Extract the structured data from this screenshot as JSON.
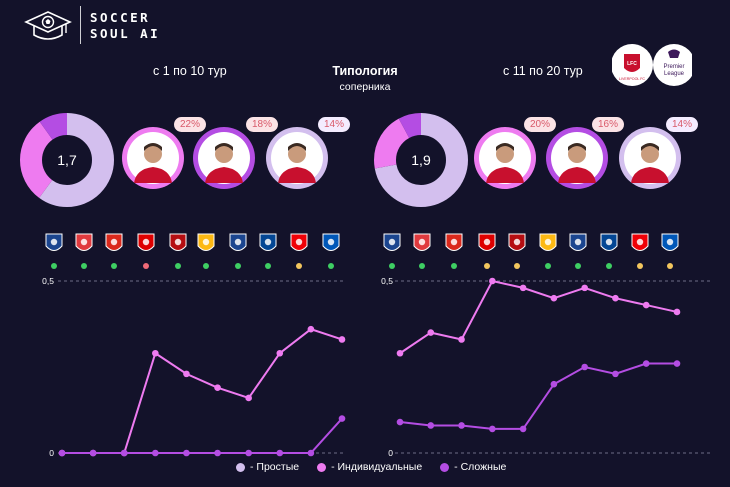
{
  "brand": {
    "line1": "SOCCER",
    "line2": "SOUL AI"
  },
  "header": {
    "left_title": "с 1 по 10 тур",
    "center_title": "Типология",
    "center_subtitle": "соперника",
    "right_title": "с 11 по 20 тур"
  },
  "badges": [
    "LIVERPOOL FC",
    "Premier League"
  ],
  "colors": {
    "simple": "#d3bfee",
    "individual": "#ee7bf0",
    "complex": "#b44de3",
    "green": "#3ecf63",
    "red": "#f06a78",
    "yellow": "#f3c65e",
    "background": "#13122a"
  },
  "panels": [
    {
      "donut_value": "1,7",
      "donut_shares": {
        "simple": 0.6,
        "individual": 0.3,
        "complex": 0.1
      },
      "players": [
        {
          "pct": "22%",
          "ring": "individual",
          "icon": "player-photo-icon"
        },
        {
          "pct": "18%",
          "ring": "complex",
          "icon": "player-photo-icon"
        },
        {
          "pct": "14%",
          "ring": "simple",
          "icon": "player-photo-icon"
        }
      ],
      "opponents": [
        {
          "icon": "ipswich-crest-icon",
          "status": "green"
        },
        {
          "icon": "brentford-crest-icon",
          "status": "green"
        },
        {
          "icon": "man-united-crest-icon",
          "status": "green"
        },
        {
          "icon": "nottingham-crest-icon",
          "status": "red"
        },
        {
          "icon": "bournemouth-crest-icon",
          "status": "green"
        },
        {
          "icon": "wolves-crest-icon",
          "status": "green"
        },
        {
          "icon": "crystal-palace-crest-icon",
          "status": "green"
        },
        {
          "icon": "chelsea-crest-icon",
          "status": "green"
        },
        {
          "icon": "arsenal-crest-icon",
          "status": "yellow"
        },
        {
          "icon": "brighton-crest-icon",
          "status": "green"
        }
      ]
    },
    {
      "donut_value": "1,9",
      "donut_shares": {
        "simple": 0.72,
        "individual": 0.2,
        "complex": 0.08
      },
      "players": [
        {
          "pct": "20%",
          "ring": "individual",
          "icon": "player-photo-icon"
        },
        {
          "pct": "16%",
          "ring": "complex",
          "icon": "player-photo-icon"
        },
        {
          "pct": "14%",
          "ring": "simple",
          "icon": "player-photo-icon"
        }
      ],
      "opponents": [
        {
          "icon": "aston-villa-crest-icon",
          "status": "green"
        },
        {
          "icon": "southampton-crest-icon",
          "status": "green"
        },
        {
          "icon": "man-city-crest-icon",
          "status": "green"
        },
        {
          "icon": "newcastle-crest-icon",
          "status": "yellow"
        },
        {
          "icon": "fulham-crest-icon",
          "status": "yellow"
        },
        {
          "icon": "tottenham-crest-icon",
          "status": "green"
        },
        {
          "icon": "leicester-crest-icon",
          "status": "green"
        },
        {
          "icon": "west-ham-crest-icon",
          "status": "green"
        },
        {
          "icon": "man-united-crest-icon",
          "status": "yellow"
        },
        {
          "icon": "nottingham-crest-icon",
          "status": "yellow"
        }
      ]
    }
  ],
  "legend": [
    "- Простые",
    "- Индивидуальные",
    "- Сложные"
  ],
  "chart_data": [
    {
      "type": "line",
      "x": [
        1,
        2,
        3,
        4,
        5,
        6,
        7,
        8,
        9,
        10
      ],
      "yticks": [
        "0,5",
        "0"
      ],
      "ylim": [
        0,
        0.5
      ],
      "series": [
        {
          "name": "- Индивидуальные",
          "color": "#ee7bf0",
          "values": [
            0,
            0,
            0,
            0.29,
            0.23,
            0.19,
            0.16,
            0.29,
            0.36,
            0.33
          ]
        },
        {
          "name": "- Сложные",
          "color": "#b44de3",
          "values": [
            0,
            0,
            0,
            0,
            0,
            0,
            0,
            0,
            0,
            0.1
          ]
        }
      ]
    },
    {
      "type": "line",
      "x": [
        11,
        12,
        13,
        14,
        15,
        16,
        17,
        18,
        19,
        20
      ],
      "yticks": [
        "0,5",
        "0"
      ],
      "ylim": [
        0,
        0.5
      ],
      "series": [
        {
          "name": "- Индивидуальные",
          "color": "#ee7bf0",
          "values": [
            0.29,
            0.35,
            0.33,
            0.5,
            0.48,
            0.45,
            0.48,
            0.45,
            0.43,
            0.41
          ]
        },
        {
          "name": "- Сложные",
          "color": "#b44de3",
          "values": [
            0.09,
            0.08,
            0.08,
            0.07,
            0.07,
            0.2,
            0.25,
            0.23,
            0.26,
            0.26
          ]
        }
      ]
    }
  ]
}
